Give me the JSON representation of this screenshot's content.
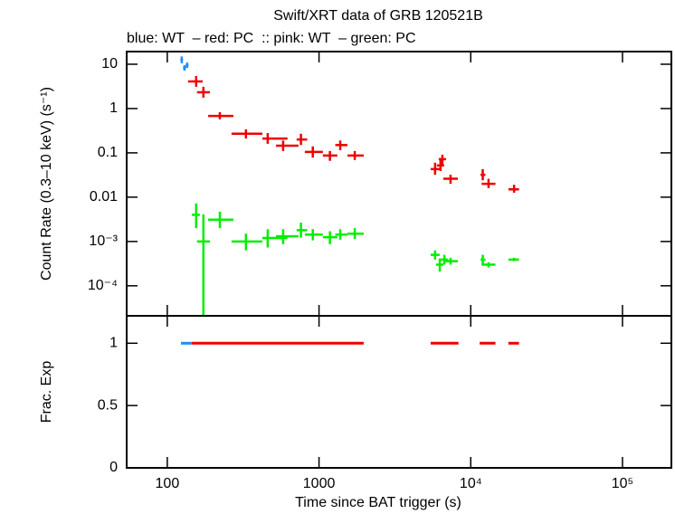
{
  "title": "Swift/XRT data of GRB 120521B",
  "subtitle": "blue: WT  – red: PC  :: pink: WT  – green: PC",
  "chart_data": [
    {
      "type": "errorbar",
      "ylabel": "Count Rate (0.3–10 keV) (s⁻¹)",
      "xlog": true,
      "ylog": true,
      "xlim": [
        54,
        210000
      ],
      "ylim": [
        2.1e-05,
        19.3
      ],
      "yticks": [
        10,
        1,
        0.1,
        0.01,
        {
          "value": 0.001,
          "label": "10⁻³"
        },
        {
          "value": 0.0001,
          "label": "10⁻⁴"
        }
      ],
      "series": [
        {
          "name": "WT",
          "color": "#1f8fff",
          "x": [
            124.6,
            129.8,
            135.2
          ],
          "values": [
            12.6,
            8.3,
            9.5
          ],
          "x_low": [
            122,
            127,
            132
          ],
          "x_high": [
            127,
            133,
            138
          ],
          "y_low": [
            10.5,
            7.2,
            8.3
          ],
          "y_high": [
            15,
            9.5,
            10.9
          ]
        },
        {
          "name": "PC",
          "color": "#ee0000",
          "x": [
            155,
            173,
            222,
            330,
            459,
            580,
            760,
            910,
            1180,
            1380,
            1720,
            5820,
            6320,
            6500,
            7360,
            12000,
            13100,
            19300
          ],
          "values": [
            4.1,
            2.33,
            0.68,
            0.27,
            0.21,
            0.145,
            0.2,
            0.105,
            0.087,
            0.15,
            0.087,
            0.043,
            0.052,
            0.072,
            0.026,
            0.032,
            0.02,
            0.015
          ],
          "x_low": [
            137,
            157,
            186,
            265,
            423,
            520,
            712,
            806,
            1060,
            1280,
            1540,
            5440,
            5980,
            6150,
            6600,
            11600,
            11800,
            17700
          ],
          "x_high": [
            171,
            191,
            273,
            423,
            620,
            732,
            836,
            1060,
            1320,
            1540,
            1970,
            6240,
            6680,
            6870,
            8230,
            12500,
            14550,
            20800
          ],
          "y_low": [
            3.1,
            1.76,
            0.57,
            0.21,
            0.16,
            0.11,
            0.15,
            0.078,
            0.066,
            0.115,
            0.069,
            0.032,
            0.039,
            0.054,
            0.02,
            0.024,
            0.016,
            0.0126
          ],
          "y_high": [
            5.4,
            3.1,
            0.83,
            0.34,
            0.28,
            0.19,
            0.27,
            0.14,
            0.11,
            0.19,
            0.11,
            0.06,
            0.069,
            0.091,
            0.032,
            0.043,
            0.026,
            0.019
          ]
        },
        {
          "name": "PC",
          "color": "#00ee00",
          "x": [
            155,
            173,
            222,
            330,
            459,
            580,
            760,
            910,
            1180,
            1380,
            1720,
            5820,
            6250,
            6700,
            7360,
            12000,
            13100,
            19300
          ],
          "values": [
            0.004,
            0.001,
            0.0031,
            0.001,
            0.0012,
            0.00131,
            0.0018,
            0.00143,
            0.00125,
            0.00143,
            0.0015,
            0.0005,
            0.0003,
            0.00039,
            0.00036,
            0.00039,
            0.0003,
            0.00039
          ],
          "x_low": [
            145,
            157,
            186,
            265,
            423,
            520,
            712,
            806,
            1060,
            1280,
            1540,
            5440,
            5900,
            6150,
            6600,
            11600,
            11800,
            17700
          ],
          "x_high": [
            164,
            191,
            273,
            423,
            620,
            732,
            836,
            1060,
            1320,
            1540,
            1970,
            6240,
            6600,
            7100,
            8230,
            12500,
            14550,
            20800
          ],
          "y_low": [
            0.002,
            2.2e-05,
            0.002,
            0.00063,
            0.00073,
            0.00087,
            0.00122,
            0.00106,
            0.00087,
            0.0011,
            0.00114,
            0.00039,
            0.00021,
            0.0003,
            0.0003,
            0.0003,
            0.00026,
            0.00036
          ],
          "y_high": [
            0.0072,
            0.0041,
            0.0047,
            0.0015,
            0.00189,
            0.00189,
            0.00266,
            0.0019,
            0.0017,
            0.00189,
            0.002,
            0.00063,
            0.00039,
            0.0005,
            0.00043,
            0.0005,
            0.00034,
            0.00043
          ]
        }
      ]
    },
    {
      "type": "range",
      "ylabel": "Frac. Exp",
      "xlabel": "Time since BAT trigger (s)",
      "xlog": true,
      "xlim": [
        54,
        210000
      ],
      "ylim": [
        0,
        1.22
      ],
      "xticks": [
        100,
        1000,
        {
          "value": 10000,
          "label": "10⁴"
        },
        {
          "value": 100000,
          "label": "10⁵"
        }
      ],
      "yticks": [
        0,
        0.5,
        1
      ],
      "series": [
        {
          "name": "WT",
          "color": "#1f8fff",
          "x_low": [
            123
          ],
          "x_high": [
            145
          ],
          "values": [
            1
          ]
        },
        {
          "name": "PC",
          "color": "#ee0000",
          "x_low": [
            145,
            5440,
            11450,
            17700
          ],
          "x_high": [
            1970,
            8300,
            14550,
            20800
          ],
          "values": [
            1,
            1,
            1,
            1
          ]
        }
      ]
    }
  ]
}
